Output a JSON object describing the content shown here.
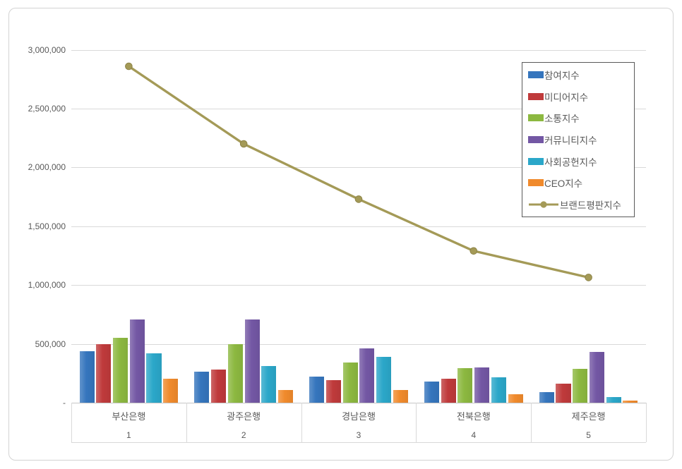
{
  "chart_data": {
    "type": "bar",
    "subtype": "grouped-bars-with-line-overlay",
    "title": "",
    "categories": [
      "부산은행",
      "광주은행",
      "경남은행",
      "전북은행",
      "제주은행"
    ],
    "category_ranks": [
      "1",
      "2",
      "3",
      "4",
      "5"
    ],
    "series": [
      {
        "type": "bar",
        "name": "참여지수",
        "color": "#3575BD",
        "values": [
          435000,
          265000,
          225000,
          180000,
          90000
        ]
      },
      {
        "type": "bar",
        "name": "미디어지수",
        "color": "#BF3A3B",
        "values": [
          500000,
          280000,
          190000,
          205000,
          160000
        ]
      },
      {
        "type": "bar",
        "name": "소통지수",
        "color": "#8CB840",
        "values": [
          550000,
          500000,
          340000,
          295000,
          290000
        ]
      },
      {
        "type": "bar",
        "name": "커뮤니티지수",
        "color": "#7357A4",
        "values": [
          705000,
          705000,
          460000,
          300000,
          430000
        ]
      },
      {
        "type": "bar",
        "name": "사회공헌지수",
        "color": "#2BA7C9",
        "values": [
          420000,
          315000,
          390000,
          215000,
          50000
        ]
      },
      {
        "type": "bar",
        "name": "CEO지수",
        "color": "#F08A2C",
        "values": [
          205000,
          110000,
          110000,
          70000,
          20000
        ]
      },
      {
        "type": "line",
        "name": "브랜드평판지수",
        "color": "#A49A57",
        "values": [
          2860000,
          2200000,
          1730000,
          1290000,
          1065000
        ]
      }
    ],
    "ylim": [
      0,
      3000000
    ],
    "y_tick_step": 500000,
    "y_tick_labels": [
      "-",
      "500,000",
      "1,000,000",
      "1,500,000",
      "2,000,000",
      "2,500,000",
      "3,000,000"
    ],
    "xlabel": "",
    "ylabel": "",
    "grid": true,
    "legend_position": "inside-top-right",
    "colors": {
      "grid": "#d9d9d9",
      "axis_line": "#c6c6c6",
      "text": "#595959",
      "legend_border": "#595959",
      "card_border": "#d3d3d3",
      "background": "#ffffff"
    }
  }
}
